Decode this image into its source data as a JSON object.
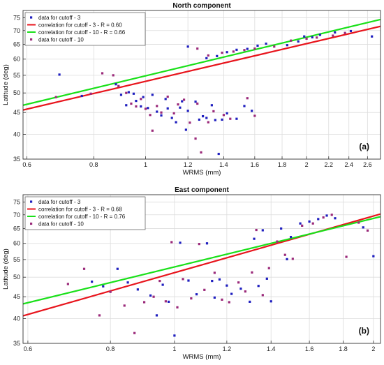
{
  "chart_data": [
    {
      "type": "scatter",
      "title": "North component",
      "xlabel": "WRMS (mm)",
      "ylabel": "Latitude (deg)",
      "panel_label": "(a)",
      "x_scale": "log",
      "y_scale": "log",
      "xlim": [
        0.59,
        2.75
      ],
      "ylim": [
        35,
        78
      ],
      "x_ticks": [
        0.6,
        0.8,
        1,
        1.2,
        1.4,
        1.6,
        1.8,
        2,
        2.2,
        2.4,
        2.6
      ],
      "x_tick_labels": [
        "0.6",
        "0.8",
        "1",
        "1.2",
        "1.4",
        "1.6",
        "1.8",
        "2",
        "2.2",
        "2.4",
        "2.6"
      ],
      "y_ticks": [
        35,
        40,
        45,
        50,
        55,
        60,
        65,
        70,
        75
      ],
      "y_tick_labels": [
        "35",
        "40",
        "45",
        "50",
        "55",
        "60",
        "65",
        "70",
        "75"
      ],
      "grid": true,
      "legend_position": "top-left",
      "series": [
        {
          "name": "data for cutoff - 3",
          "kind": "markers",
          "color": "#1f1fbf",
          "points": [
            [
              0.69,
              55.2
            ],
            [
              0.76,
              49.2
            ],
            [
              0.88,
              52.4
            ],
            [
              0.9,
              49.5
            ],
            [
              0.92,
              46.8
            ],
            [
              0.93,
              50.2
            ],
            [
              0.95,
              49.8
            ],
            [
              0.96,
              47.9
            ],
            [
              0.98,
              46.5
            ],
            [
              0.99,
              48.9
            ],
            [
              1.01,
              46.1
            ],
            [
              1.03,
              49.5
            ],
            [
              1.05,
              45.2
            ],
            [
              1.07,
              44.3
            ],
            [
              1.09,
              48.4
            ],
            [
              1.1,
              46.0
            ],
            [
              1.12,
              43.7
            ],
            [
              1.14,
              42.7
            ],
            [
              1.16,
              46.2
            ],
            [
              1.17,
              47.8
            ],
            [
              1.19,
              41.0
            ],
            [
              1.2,
              45.4
            ],
            [
              1.24,
              47.7
            ],
            [
              1.26,
              43.3
            ],
            [
              1.28,
              44.1
            ],
            [
              1.3,
              43.7
            ],
            [
              1.33,
              46.8
            ],
            [
              1.35,
              43.2
            ],
            [
              1.37,
              36.0
            ],
            [
              1.39,
              43.3
            ],
            [
              1.42,
              44.8
            ],
            [
              1.48,
              43.5
            ],
            [
              1.53,
              46.6
            ],
            [
              1.58,
              45.4
            ],
            [
              1.2,
              64.2
            ],
            [
              1.3,
              60.3
            ],
            [
              1.36,
              61.0
            ],
            [
              1.42,
              62.3
            ],
            [
              1.48,
              63.1
            ],
            [
              1.55,
              63.4
            ],
            [
              1.62,
              64.5
            ],
            [
              1.68,
              65.2
            ],
            [
              1.84,
              64.7
            ],
            [
              1.93,
              66.0
            ],
            [
              1.98,
              67.8
            ],
            [
              2.05,
              67.5
            ],
            [
              2.12,
              68.4
            ],
            [
              2.26,
              69.3
            ],
            [
              2.42,
              69.8
            ],
            [
              2.65,
              67.8
            ]
          ]
        },
        {
          "name": "data for cutoff - 10",
          "kind": "markers",
          "color": "#9b2a7a",
          "points": [
            [
              0.68,
              48.9
            ],
            [
              0.79,
              49.8
            ],
            [
              0.83,
              55.6
            ],
            [
              0.87,
              55.0
            ],
            [
              0.89,
              51.9
            ],
            [
              0.92,
              50.0
            ],
            [
              0.94,
              47.2
            ],
            [
              0.96,
              46.5
            ],
            [
              0.98,
              48.4
            ],
            [
              1.0,
              45.9
            ],
            [
              1.02,
              44.4
            ],
            [
              1.03,
              40.8
            ],
            [
              1.05,
              46.6
            ],
            [
              1.07,
              45.0
            ],
            [
              1.1,
              49.0
            ],
            [
              1.13,
              44.8
            ],
            [
              1.15,
              47.0
            ],
            [
              1.18,
              48.2
            ],
            [
              1.21,
              42.6
            ],
            [
              1.24,
              39.1
            ],
            [
              1.25,
              47.2
            ],
            [
              1.27,
              36.3
            ],
            [
              1.31,
              42.7
            ],
            [
              1.34,
              45.3
            ],
            [
              1.4,
              44.4
            ],
            [
              1.44,
              43.5
            ],
            [
              1.55,
              48.6
            ],
            [
              1.6,
              44.2
            ],
            [
              1.25,
              63.5
            ],
            [
              1.31,
              61.2
            ],
            [
              1.39,
              62.1
            ],
            [
              1.46,
              62.5
            ],
            [
              1.53,
              63.0
            ],
            [
              1.6,
              63.5
            ],
            [
              1.74,
              64.2
            ],
            [
              1.87,
              66.3
            ],
            [
              2.0,
              67.0
            ],
            [
              2.09,
              67.4
            ],
            [
              2.24,
              68.1
            ],
            [
              2.36,
              69.1
            ]
          ]
        },
        {
          "name": "correlation for cutoff - 3 - R = 0.60",
          "kind": "line",
          "color": "#e8141c",
          "points": [
            [
              0.59,
              45.6
            ],
            [
              2.75,
              71.6
            ]
          ]
        },
        {
          "name": "correlation for cutoff - 10 - R = 0.66",
          "kind": "line",
          "color": "#19e019",
          "points": [
            [
              0.59,
              46.8
            ],
            [
              2.75,
              74.3
            ]
          ]
        }
      ]
    },
    {
      "type": "scatter",
      "title": "East component",
      "xlabel": "WRMS (mm)",
      "ylabel": "Latitude (deg)",
      "panel_label": "(b)",
      "x_scale": "log",
      "y_scale": "log",
      "xlim": [
        0.59,
        2.05
      ],
      "ylim": [
        35,
        78
      ],
      "x_ticks": [
        0.6,
        0.8,
        1,
        1.2,
        1.4,
        1.6,
        1.8,
        2
      ],
      "x_tick_labels": [
        "0.6",
        "0.8",
        "1",
        "1.2",
        "1.4",
        "1.6",
        "1.8",
        "2"
      ],
      "y_ticks": [
        35,
        40,
        45,
        50,
        55,
        60,
        65,
        70,
        75
      ],
      "y_tick_labels": [
        "35",
        "40",
        "45",
        "50",
        "55",
        "60",
        "65",
        "70",
        "75"
      ],
      "grid": true,
      "legend_position": "top-left",
      "series": [
        {
          "name": "data for cutoff - 3",
          "kind": "markers",
          "color": "#1f1fbf",
          "points": [
            [
              0.75,
              48.8
            ],
            [
              0.78,
              47.6
            ],
            [
              0.82,
              52.3
            ],
            [
              0.85,
              48.6
            ],
            [
              0.88,
              46.8
            ],
            [
              0.92,
              45.3
            ],
            [
              0.94,
              40.7
            ],
            [
              0.96,
              48.0
            ],
            [
              0.98,
              43.8
            ],
            [
              1.0,
              36.5
            ],
            [
              1.02,
              60.2
            ],
            [
              1.05,
              49.1
            ],
            [
              1.08,
              45.6
            ],
            [
              1.12,
              60.0
            ],
            [
              1.14,
              49.0
            ],
            [
              1.15,
              44.8
            ],
            [
              1.17,
              49.4
            ],
            [
              1.2,
              47.8
            ],
            [
              1.22,
              45.7
            ],
            [
              1.26,
              47.0
            ],
            [
              1.3,
              43.8
            ],
            [
              1.32,
              61.5
            ],
            [
              1.34,
              47.7
            ],
            [
              1.36,
              64.4
            ],
            [
              1.38,
              49.6
            ],
            [
              1.4,
              43.9
            ],
            [
              1.45,
              65.0
            ],
            [
              1.48,
              55.1
            ],
            [
              1.5,
              62.1
            ],
            [
              1.55,
              66.8
            ],
            [
              1.6,
              67.5
            ],
            [
              1.65,
              68.4
            ],
            [
              1.7,
              69.7
            ],
            [
              1.75,
              68.7
            ],
            [
              1.93,
              65.4
            ],
            [
              2.0,
              56.0
            ]
          ]
        },
        {
          "name": "data for cutoff - 10",
          "kind": "markers",
          "color": "#9b2a7a",
          "points": [
            [
              0.69,
              48.2
            ],
            [
              0.73,
              52.3
            ],
            [
              0.77,
              40.7
            ],
            [
              0.8,
              46.2
            ],
            [
              0.84,
              42.9
            ],
            [
              0.87,
              37.0
            ],
            [
              0.9,
              43.7
            ],
            [
              0.93,
              45.0
            ],
            [
              0.95,
              49.0
            ],
            [
              0.97,
              43.9
            ],
            [
              0.99,
              60.4
            ],
            [
              1.01,
              42.5
            ],
            [
              1.03,
              49.5
            ],
            [
              1.06,
              44.6
            ],
            [
              1.09,
              59.8
            ],
            [
              1.11,
              46.7
            ],
            [
              1.15,
              51.2
            ],
            [
              1.18,
              44.3
            ],
            [
              1.21,
              43.7
            ],
            [
              1.25,
              48.6
            ],
            [
              1.28,
              46.3
            ],
            [
              1.31,
              51.3
            ],
            [
              1.33,
              64.5
            ],
            [
              1.36,
              45.4
            ],
            [
              1.39,
              52.5
            ],
            [
              1.43,
              60.6
            ],
            [
              1.47,
              56.4
            ],
            [
              1.51,
              55.2
            ],
            [
              1.56,
              66.0
            ],
            [
              1.62,
              66.8
            ],
            [
              1.68,
              69.0
            ],
            [
              1.73,
              70.0
            ],
            [
              1.82,
              55.8
            ],
            [
              1.9,
              67.1
            ],
            [
              1.96,
              64.3
            ]
          ]
        },
        {
          "name": "correlation for cutoff - 3 - R = 0.68",
          "kind": "line",
          "color": "#e8141c",
          "points": [
            [
              0.59,
              40.6
            ],
            [
              2.05,
              70.3
            ]
          ]
        },
        {
          "name": "correlation for cutoff - 10 - R = 0.76",
          "kind": "line",
          "color": "#19e019",
          "points": [
            [
              0.59,
              43.3
            ],
            [
              2.05,
              69.3
            ]
          ]
        }
      ]
    }
  ]
}
